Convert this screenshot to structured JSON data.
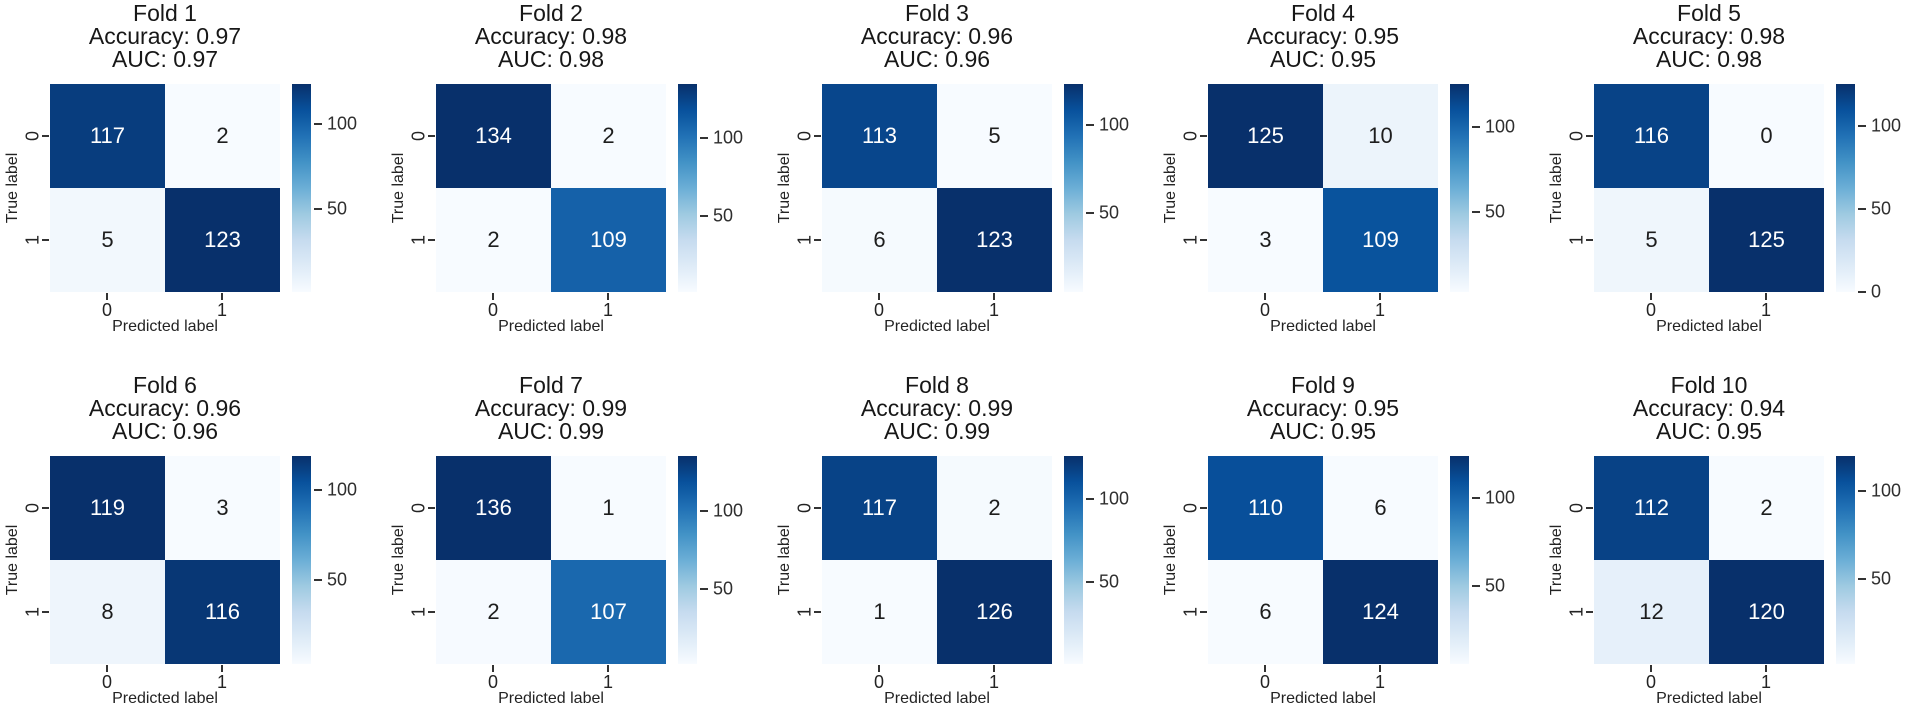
{
  "figure": {
    "description": "10-fold cross-validation confusion matrices",
    "xlabel": "Predicted label",
    "ylabel": "True label",
    "x_tick_labels": [
      "0",
      "1"
    ],
    "y_tick_labels": [
      "0",
      "1"
    ]
  },
  "colors": {
    "background": "#ffffff",
    "text": "#171717",
    "tick_text": "#232323",
    "annotation_on_dark": "#ffffff",
    "annotation_on_light": "#1d1d1d",
    "colormap_name": "Blues",
    "cmap_stops": [
      [
        0.0,
        247,
        251,
        255
      ],
      [
        0.125,
        222,
        235,
        247
      ],
      [
        0.25,
        198,
        219,
        239
      ],
      [
        0.375,
        158,
        202,
        225
      ],
      [
        0.5,
        107,
        174,
        214
      ],
      [
        0.625,
        66,
        146,
        198
      ],
      [
        0.75,
        33,
        113,
        181
      ],
      [
        0.875,
        8,
        81,
        156
      ],
      [
        1.0,
        8,
        48,
        107
      ]
    ]
  },
  "chart_data": {
    "type": "heatmap",
    "layout": "2 rows x 5 columns of 2x2 confusion matrices, each with its own Blues colorbar",
    "xlabel": "Predicted label",
    "ylabel": "True label",
    "x_categories": [
      "0",
      "1"
    ],
    "y_categories": [
      "0",
      "1"
    ],
    "folds": [
      {
        "title": "Fold 1",
        "accuracy": 0.97,
        "auc": 0.97,
        "accuracy_label": "Accuracy: 0.97",
        "auc_label": "AUC: 0.97",
        "matrix": [
          [
            117,
            2
          ],
          [
            5,
            123
          ]
        ],
        "colorbar_ticks": [
          100,
          50
        ]
      },
      {
        "title": "Fold 2",
        "accuracy": 0.98,
        "auc": 0.98,
        "accuracy_label": "Accuracy: 0.98",
        "auc_label": "AUC: 0.98",
        "matrix": [
          [
            134,
            2
          ],
          [
            2,
            109
          ]
        ],
        "colorbar_ticks": [
          100,
          50
        ]
      },
      {
        "title": "Fold 3",
        "accuracy": 0.96,
        "auc": 0.96,
        "accuracy_label": "Accuracy: 0.96",
        "auc_label": "AUC: 0.96",
        "matrix": [
          [
            113,
            5
          ],
          [
            6,
            123
          ]
        ],
        "colorbar_ticks": [
          100,
          50
        ]
      },
      {
        "title": "Fold 4",
        "accuracy": 0.95,
        "auc": 0.95,
        "accuracy_label": "Accuracy: 0.95",
        "auc_label": "AUC: 0.95",
        "matrix": [
          [
            125,
            10
          ],
          [
            3,
            109
          ]
        ],
        "colorbar_ticks": [
          100,
          50
        ]
      },
      {
        "title": "Fold 5",
        "accuracy": 0.98,
        "auc": 0.98,
        "accuracy_label": "Accuracy: 0.98",
        "auc_label": "AUC: 0.98",
        "matrix": [
          [
            116,
            0
          ],
          [
            5,
            125
          ]
        ],
        "colorbar_ticks": [
          100,
          50,
          0
        ]
      },
      {
        "title": "Fold 6",
        "accuracy": 0.96,
        "auc": 0.96,
        "accuracy_label": "Accuracy: 0.96",
        "auc_label": "AUC: 0.96",
        "matrix": [
          [
            119,
            3
          ],
          [
            8,
            116
          ]
        ],
        "colorbar_ticks": [
          100,
          50
        ]
      },
      {
        "title": "Fold 7",
        "accuracy": 0.99,
        "auc": 0.99,
        "accuracy_label": "Accuracy: 0.99",
        "auc_label": "AUC: 0.99",
        "matrix": [
          [
            136,
            1
          ],
          [
            2,
            107
          ]
        ],
        "colorbar_ticks": [
          100,
          50
        ]
      },
      {
        "title": "Fold 8",
        "accuracy": 0.99,
        "auc": 0.99,
        "accuracy_label": "Accuracy: 0.99",
        "auc_label": "AUC: 0.99",
        "matrix": [
          [
            117,
            2
          ],
          [
            1,
            126
          ]
        ],
        "colorbar_ticks": [
          100,
          50
        ]
      },
      {
        "title": "Fold 9",
        "accuracy": 0.95,
        "auc": 0.95,
        "accuracy_label": "Accuracy: 0.95",
        "auc_label": "AUC: 0.95",
        "matrix": [
          [
            110,
            6
          ],
          [
            6,
            124
          ]
        ],
        "colorbar_ticks": [
          100,
          50
        ]
      },
      {
        "title": "Fold 10",
        "accuracy": 0.94,
        "auc": 0.95,
        "accuracy_label": "Accuracy: 0.94",
        "auc_label": "AUC: 0.95",
        "matrix": [
          [
            112,
            2
          ],
          [
            12,
            120
          ]
        ],
        "colorbar_ticks": [
          100,
          50
        ]
      }
    ]
  }
}
